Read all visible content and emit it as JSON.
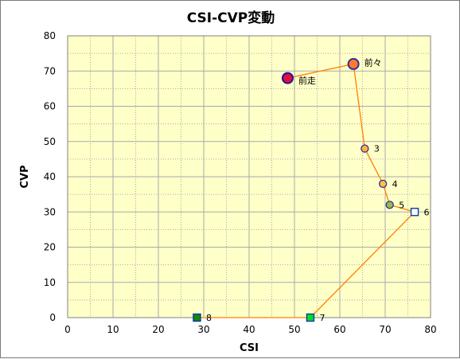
{
  "chart_data": {
    "type": "scatter",
    "title": "CSI-CVP変動",
    "xlabel": "CSI",
    "ylabel": "CVP",
    "xlim": [
      0,
      80
    ],
    "ylim": [
      0,
      80
    ],
    "xticks": [
      0,
      10,
      20,
      30,
      40,
      50,
      60,
      70,
      80
    ],
    "yticks": [
      0,
      10,
      20,
      30,
      40,
      50,
      60,
      70,
      80
    ],
    "grid": true,
    "legend": "none",
    "colors": {
      "plot_background": "#ffffc8",
      "grid": "#aaaaaa",
      "line": "#ff8000"
    },
    "points": [
      {
        "label": "前走",
        "x": 48.5,
        "y": 68,
        "marker": "circle-large",
        "fill": "#e0103a",
        "stroke": "#1515a0"
      },
      {
        "label": "前々",
        "x": 63,
        "y": 72,
        "marker": "circle-large",
        "fill": "#ff7a2a",
        "stroke": "#3030a0"
      },
      {
        "label": "3",
        "x": 65.5,
        "y": 48,
        "marker": "circle",
        "fill": "#ffb340",
        "stroke": "#2a2aa0"
      },
      {
        "label": "4",
        "x": 69.5,
        "y": 38,
        "marker": "circle",
        "fill": "#ffc040",
        "stroke": "#2a2aa0"
      },
      {
        "label": "5",
        "x": 71,
        "y": 32,
        "marker": "circle",
        "fill": "#9ab84a",
        "stroke": "#2a2aa0"
      },
      {
        "label": "6",
        "x": 76.5,
        "y": 30,
        "marker": "square",
        "fill": "#ffffff",
        "stroke": "#0b3a9c"
      },
      {
        "label": "7",
        "x": 53.5,
        "y": 0,
        "marker": "square",
        "fill": "#00dd33",
        "stroke": "#0b3a9c"
      },
      {
        "label": "8",
        "x": 28.5,
        "y": 0,
        "marker": "square",
        "fill": "#118811",
        "stroke": "#0b3a9c"
      }
    ]
  }
}
